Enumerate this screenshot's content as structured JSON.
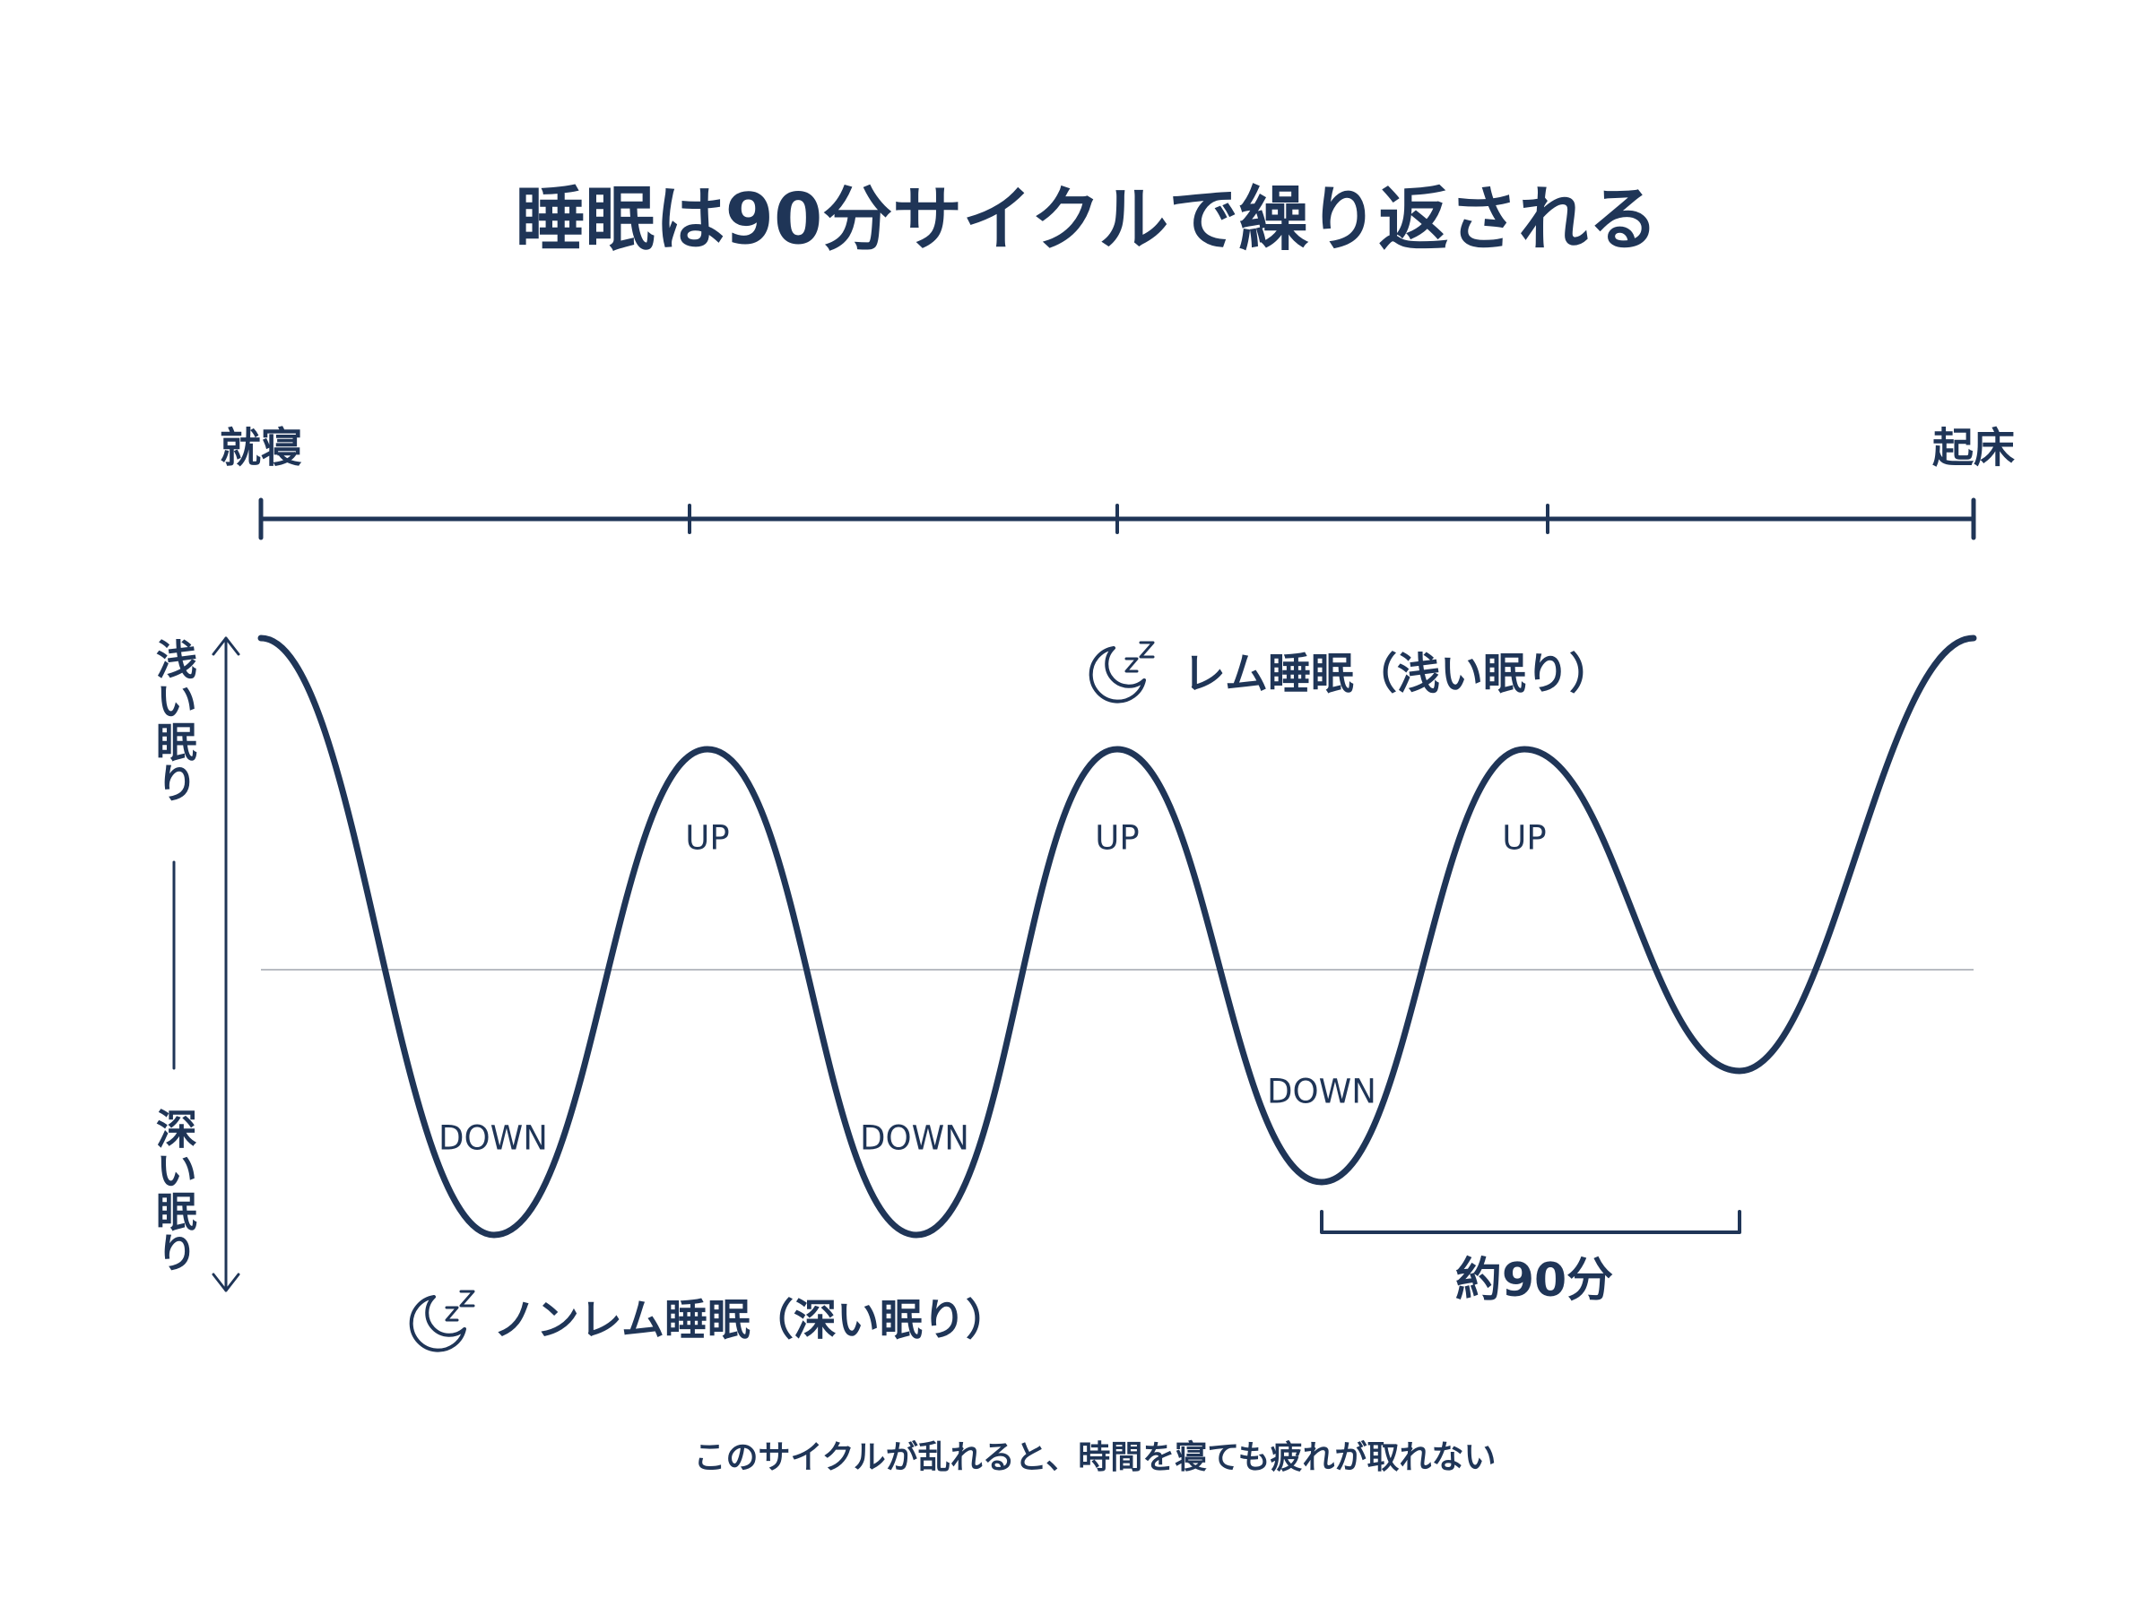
{
  "title": "睡眠は90分サイクルで繰り返される",
  "timeline": {
    "start": "就寝",
    "end": "起床"
  },
  "depth_axis": {
    "shallow": "浅い眠り",
    "deep": "深い眠り"
  },
  "wave_labels": {
    "up": [
      "UP",
      "UP",
      "UP"
    ],
    "down": [
      "DOWN",
      "DOWN",
      "DOWN"
    ]
  },
  "legend": {
    "rem": "レム睡眠（浅い眠り）",
    "non_rem": "ノンレム睡眠（深い眠り）"
  },
  "cycle_label": "約90分",
  "footnote": "このサイクルが乱れると、時間を寝ても疲れが取れない"
}
